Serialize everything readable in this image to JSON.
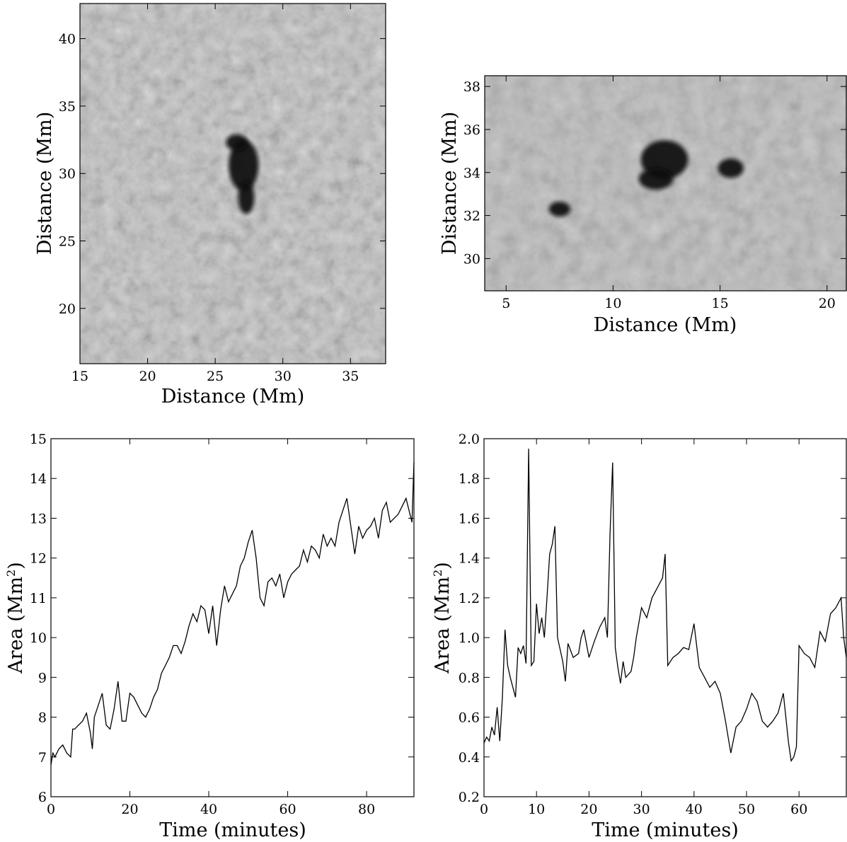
{
  "panels": [
    {
      "id": "granulation-image-1",
      "type": "image",
      "xlabel": "Distance (Mm)",
      "ylabel": "Distance (Mm)",
      "xlim": [
        15,
        37.6
      ],
      "ylim": [
        15.9,
        42.6
      ],
      "xticks": [
        15,
        20,
        25,
        30,
        35
      ],
      "yticks": [
        20,
        25,
        30,
        35,
        40
      ],
      "spots": [
        {
          "x": 27.1,
          "y": 30.6,
          "rx": 1.1,
          "ry": 1.9
        },
        {
          "x": 26.6,
          "y": 32.3,
          "rx": 0.8,
          "ry": 0.6
        },
        {
          "x": 27.3,
          "y": 28.2,
          "rx": 0.6,
          "ry": 1.2
        }
      ]
    },
    {
      "id": "granulation-image-2",
      "type": "image",
      "xlabel": "Distance (Mm)",
      "ylabel": "Distance (Mm)",
      "xlim": [
        4,
        20.9
      ],
      "ylim": [
        28.5,
        38.5
      ],
      "xticks": [
        5,
        10,
        15,
        20
      ],
      "yticks": [
        30,
        32,
        34,
        36,
        38
      ],
      "spots": [
        {
          "x": 12.4,
          "y": 34.6,
          "rx": 1.1,
          "ry": 0.9
        },
        {
          "x": 12.0,
          "y": 33.7,
          "rx": 0.8,
          "ry": 0.5
        },
        {
          "x": 15.5,
          "y": 34.2,
          "rx": 0.6,
          "ry": 0.45
        },
        {
          "x": 7.5,
          "y": 32.3,
          "rx": 0.5,
          "ry": 0.35
        }
      ]
    },
    {
      "id": "area-plot-1",
      "type": "line",
      "xlabel": "Time (minutes)",
      "ylabel": "Area (Mm",
      "ylabel_sup": "2",
      "ylabel_end": ")",
      "xlim": [
        0,
        92
      ],
      "ylim": [
        6,
        15
      ],
      "xticks": [
        0,
        20,
        40,
        60,
        80
      ],
      "yticks": [
        6,
        7,
        8,
        9,
        10,
        11,
        12,
        13,
        14,
        15
      ]
    },
    {
      "id": "area-plot-2",
      "type": "line",
      "xlabel": "Time (minutes)",
      "ylabel": "Area (Mm",
      "ylabel_sup": "2",
      "ylabel_end": ")",
      "xlim": [
        0,
        69
      ],
      "ylim": [
        0.2,
        2.0
      ],
      "xticks": [
        0,
        10,
        20,
        30,
        40,
        50,
        60
      ],
      "yticks": [
        0.2,
        0.4,
        0.6,
        0.8,
        1.0,
        1.2,
        1.4,
        1.6,
        1.8,
        2.0
      ],
      "ytick_labels": [
        "0.2",
        "0.4",
        "0.6",
        "0.8",
        "1.0",
        "1.2",
        "1.4",
        "1.6",
        "1.8",
        "2.0"
      ]
    }
  ],
  "chart_data": [
    {
      "type": "heatmap",
      "xlabel": "Distance (Mm)",
      "ylabel": "Distance (Mm)",
      "xlim": [
        15,
        37.6
      ],
      "ylim": [
        15.9,
        42.6
      ]
    },
    {
      "type": "heatmap",
      "xlabel": "Distance (Mm)",
      "ylabel": "Distance (Mm)",
      "xlim": [
        4,
        20.9
      ],
      "ylim": [
        28.5,
        38.5
      ]
    },
    {
      "type": "line",
      "xlabel": "Time (minutes)",
      "ylabel": "Area (Mm2)",
      "xlim": [
        0,
        92
      ],
      "ylim": [
        6,
        15
      ],
      "series": [
        {
          "x": [
            0,
            0.5,
            1,
            2,
            3,
            4,
            5,
            5.5,
            6,
            7,
            8,
            9,
            10,
            10.5,
            11,
            12,
            13,
            14,
            15,
            16,
            17,
            18,
            19,
            20,
            21,
            22,
            23,
            24,
            25,
            26,
            27,
            28,
            29,
            30,
            31,
            32,
            33,
            34,
            35,
            36,
            37,
            38,
            39,
            40,
            41,
            42,
            43,
            44,
            45,
            46,
            47,
            48,
            49,
            50,
            51,
            52,
            53,
            54,
            55,
            56,
            57,
            58,
            59,
            60,
            61,
            62,
            63,
            64,
            65,
            66,
            67,
            68,
            69,
            70,
            71,
            72,
            73,
            74,
            75,
            76,
            77,
            78,
            79,
            80,
            81,
            82,
            83,
            84,
            85,
            86,
            87,
            88,
            89,
            90,
            91,
            91.5,
            92
          ],
          "y": [
            6.8,
            7.1,
            7.0,
            7.2,
            7.3,
            7.1,
            7.0,
            7.7,
            7.7,
            7.8,
            7.9,
            8.1,
            7.6,
            7.2,
            8.0,
            8.3,
            8.6,
            7.8,
            7.7,
            8.2,
            8.9,
            7.9,
            7.9,
            8.6,
            8.5,
            8.3,
            8.1,
            8.0,
            8.2,
            8.5,
            8.7,
            9.1,
            9.3,
            9.5,
            9.8,
            9.8,
            9.6,
            9.9,
            10.3,
            10.6,
            10.4,
            10.8,
            10.7,
            10.1,
            10.8,
            9.8,
            10.7,
            11.3,
            10.9,
            11.1,
            11.3,
            11.8,
            12.0,
            12.4,
            12.7,
            12.0,
            11.0,
            10.8,
            11.4,
            11.5,
            11.3,
            11.6,
            11.0,
            11.4,
            11.6,
            11.7,
            11.8,
            12.2,
            11.9,
            12.3,
            12.2,
            12.0,
            12.6,
            12.3,
            12.5,
            12.3,
            12.9,
            13.2,
            13.5,
            12.8,
            12.1,
            12.8,
            12.5,
            12.7,
            12.8,
            13.0,
            12.5,
            13.2,
            13.4,
            12.9,
            13.0,
            13.1,
            13.3,
            13.5,
            13.1,
            12.9,
            14.4
          ]
        }
      ]
    },
    {
      "type": "line",
      "xlabel": "Time (minutes)",
      "ylabel": "Area (Mm2)",
      "xlim": [
        0,
        69
      ],
      "ylim": [
        0.2,
        2.0
      ],
      "series": [
        {
          "x": [
            0,
            0.5,
            1,
            1.5,
            2,
            2.5,
            3,
            3.5,
            4,
            4.5,
            5,
            5.5,
            6,
            6.5,
            7,
            7.5,
            8,
            8.5,
            9,
            9.5,
            10,
            10.5,
            11,
            11.5,
            12,
            12.5,
            13,
            13.5,
            14,
            15,
            15.5,
            16,
            17,
            18,
            18.5,
            19,
            20,
            21,
            22,
            23,
            23.5,
            24,
            24.5,
            25,
            25.5,
            26,
            26.5,
            27,
            28,
            28.5,
            29,
            30,
            31,
            32,
            33,
            34,
            34.5,
            35,
            36,
            37,
            38,
            39,
            40,
            41,
            42,
            43,
            44,
            45,
            46,
            46.5,
            47,
            48,
            49,
            50,
            51,
            52,
            53,
            54,
            55,
            56,
            57,
            58,
            58.5,
            59,
            59.5,
            60,
            61,
            62,
            63,
            64,
            65,
            66,
            67,
            68,
            68.5,
            69
          ],
          "y": [
            0.47,
            0.5,
            0.48,
            0.55,
            0.51,
            0.65,
            0.48,
            0.7,
            1.04,
            0.86,
            0.8,
            0.75,
            0.7,
            0.95,
            0.92,
            0.96,
            0.87,
            1.95,
            0.86,
            0.88,
            1.17,
            1.02,
            1.1,
            1.0,
            1.2,
            1.42,
            1.47,
            1.56,
            1.0,
            0.88,
            0.78,
            0.97,
            0.9,
            0.92,
            1.0,
            1.04,
            0.9,
            0.98,
            1.05,
            1.1,
            1.0,
            1.52,
            1.88,
            0.95,
            0.85,
            0.77,
            0.88,
            0.8,
            0.83,
            0.9,
            1.0,
            1.15,
            1.1,
            1.2,
            1.25,
            1.3,
            1.42,
            0.86,
            0.9,
            0.92,
            0.95,
            0.94,
            1.07,
            0.85,
            0.8,
            0.75,
            0.78,
            0.72,
            0.58,
            0.5,
            0.42,
            0.55,
            0.58,
            0.64,
            0.72,
            0.68,
            0.58,
            0.55,
            0.58,
            0.62,
            0.72,
            0.47,
            0.38,
            0.4,
            0.45,
            0.96,
            0.92,
            0.9,
            0.85,
            1.03,
            0.98,
            1.12,
            1.15,
            1.2,
            1.0,
            0.9
          ]
        }
      ]
    }
  ]
}
